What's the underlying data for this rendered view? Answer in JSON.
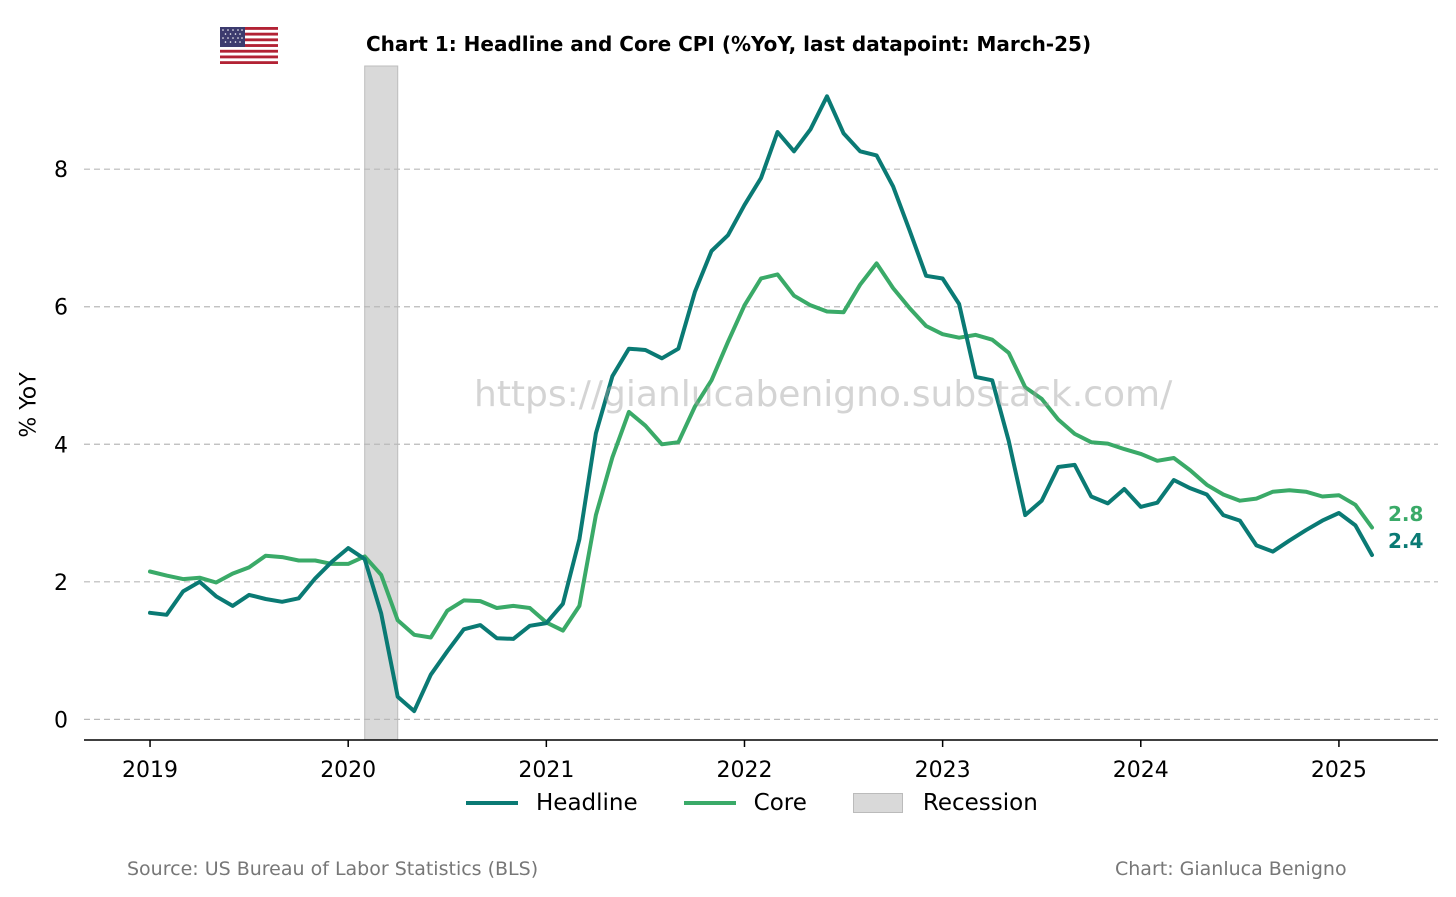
{
  "title": "Chart 1: Headline and Core CPI (%YoY, last datapoint: March-25)",
  "watermark": "https://gianlucabenigno.substack.com/",
  "source": "Source: US Bureau of Labor Statistics (BLS)",
  "credit": "Chart: Gianluca Benigno",
  "flag_icon": "us-flag-icon",
  "colors": {
    "headline": "#0a7a74",
    "core": "#3aaa68",
    "recession": "#d9d9d9",
    "grid": "#b9b9b9"
  },
  "chart_data": {
    "type": "line",
    "ylabel": "% YoY",
    "ylim": [
      -0.3,
      9.5
    ],
    "xlim": [
      "2018-09",
      "2025-07"
    ],
    "yticks": [
      0,
      2,
      4,
      6,
      8
    ],
    "xticks": [
      "2019",
      "2020",
      "2021",
      "2022",
      "2023",
      "2024",
      "2025"
    ],
    "grid": "horizontal-dashed",
    "legend_position": "bottom-center",
    "x_start": "2019-01",
    "x_frequency": "monthly",
    "recession": {
      "label": "Recession",
      "start": "2020-02",
      "end": "2020-04"
    },
    "series": [
      {
        "name": "Headline",
        "color": "#0a7a74",
        "end_label": "2.4",
        "values": [
          1.55,
          1.52,
          1.86,
          2.0,
          1.79,
          1.65,
          1.81,
          1.75,
          1.71,
          1.76,
          2.05,
          2.29,
          2.49,
          2.33,
          1.54,
          0.33,
          0.12,
          0.65,
          0.99,
          1.31,
          1.37,
          1.18,
          1.17,
          1.36,
          1.4,
          1.68,
          2.62,
          4.16,
          4.99,
          5.39,
          5.37,
          5.25,
          5.39,
          6.22,
          6.81,
          7.04,
          7.48,
          7.87,
          8.54,
          8.26,
          8.58,
          9.06,
          8.52,
          8.26,
          8.2,
          7.75,
          7.11,
          6.45,
          6.41,
          6.04,
          4.98,
          4.93,
          4.05,
          2.97,
          3.18,
          3.67,
          3.7,
          3.24,
          3.14,
          3.35,
          3.09,
          3.15,
          3.48,
          3.36,
          3.27,
          2.97,
          2.89,
          2.53,
          2.44,
          2.6,
          2.75,
          2.89,
          3.0,
          2.82,
          2.39
        ]
      },
      {
        "name": "Core",
        "color": "#3aaa68",
        "end_label": "2.8",
        "values": [
          2.15,
          2.09,
          2.04,
          2.06,
          1.99,
          2.12,
          2.21,
          2.38,
          2.36,
          2.31,
          2.31,
          2.26,
          2.26,
          2.37,
          2.1,
          1.44,
          1.23,
          1.19,
          1.58,
          1.73,
          1.72,
          1.62,
          1.65,
          1.62,
          1.41,
          1.29,
          1.65,
          2.97,
          3.81,
          4.47,
          4.27,
          4.0,
          4.03,
          4.55,
          4.93,
          5.49,
          6.02,
          6.41,
          6.47,
          6.16,
          6.02,
          5.93,
          5.92,
          6.32,
          6.63,
          6.27,
          5.98,
          5.72,
          5.6,
          5.55,
          5.59,
          5.52,
          5.33,
          4.83,
          4.66,
          4.36,
          4.15,
          4.03,
          4.01,
          3.93,
          3.86,
          3.76,
          3.8,
          3.62,
          3.41,
          3.27,
          3.18,
          3.21,
          3.31,
          3.33,
          3.31,
          3.24,
          3.26,
          3.12,
          2.79
        ]
      }
    ]
  }
}
